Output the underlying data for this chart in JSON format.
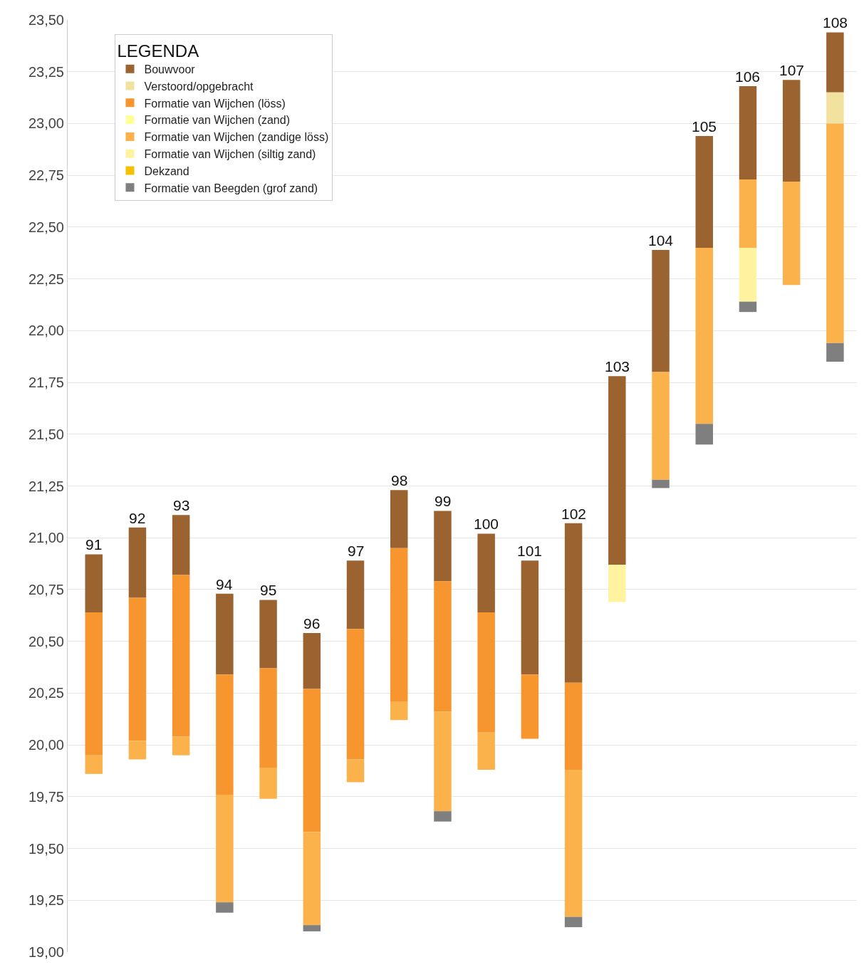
{
  "chart_data": {
    "type": "bar",
    "legend_title": "LEGENDA",
    "legend": "top left",
    "grid": "y",
    "tick_labels": "y",
    "categories": [
      "91",
      "92",
      "93",
      "94",
      "95",
      "96",
      "97",
      "98",
      "99",
      "100",
      "101",
      "102",
      "103",
      "104",
      "105",
      "106",
      "107",
      "108"
    ],
    "ylim": [
      19.0,
      23.5
    ],
    "yticks": [
      {
        "value": 19.0,
        "label": "19,00"
      },
      {
        "value": 19.25,
        "label": "19,25"
      },
      {
        "value": 19.5,
        "label": "19,50"
      },
      {
        "value": 19.75,
        "label": "19,75"
      },
      {
        "value": 20.0,
        "label": "20,00"
      },
      {
        "value": 20.25,
        "label": "20,25"
      },
      {
        "value": 20.5,
        "label": "20,50"
      },
      {
        "value": 20.75,
        "label": "20,75"
      },
      {
        "value": 21.0,
        "label": "21,00"
      },
      {
        "value": 21.25,
        "label": "21,25"
      },
      {
        "value": 21.5,
        "label": "21,50"
      },
      {
        "value": 21.75,
        "label": "21,75"
      },
      {
        "value": 22.0,
        "label": "22,00"
      },
      {
        "value": 22.25,
        "label": "22,25"
      },
      {
        "value": 22.5,
        "label": "22,50"
      },
      {
        "value": 22.75,
        "label": "22,75"
      },
      {
        "value": 23.0,
        "label": "23,00"
      },
      {
        "value": 23.25,
        "label": "23,25"
      },
      {
        "value": 23.5,
        "label": "23,50"
      }
    ],
    "series": [
      {
        "name": "Bouwvoor",
        "color": "#9a6330",
        "base": [
          20.64,
          20.71,
          20.82,
          20.34,
          20.37,
          20.27,
          20.56,
          20.95,
          20.79,
          20.64,
          20.34,
          20.3,
          20.87,
          21.8,
          22.4,
          22.73,
          22.72,
          23.15
        ],
        "values": [
          0.28,
          0.34,
          0.29,
          0.39,
          0.33,
          0.27,
          0.33,
          0.28,
          0.34,
          0.38,
          0.55,
          0.77,
          0.91,
          0.59,
          0.54,
          0.45,
          0.49,
          0.29
        ]
      },
      {
        "name": "Verstoord/opgebracht",
        "color": "#f2e2a0",
        "base": [
          null,
          null,
          null,
          null,
          null,
          null,
          null,
          null,
          null,
          null,
          null,
          null,
          null,
          null,
          null,
          null,
          null,
          23.0
        ],
        "values": [
          null,
          null,
          null,
          null,
          null,
          null,
          null,
          null,
          null,
          null,
          null,
          null,
          null,
          null,
          null,
          null,
          null,
          0.15
        ]
      },
      {
        "name": "Formatie van Wijchen (löss)",
        "color": "#f7962f",
        "base": [
          19.95,
          20.02,
          20.04,
          19.76,
          19.89,
          19.58,
          19.93,
          20.21,
          20.16,
          20.06,
          20.03,
          19.88,
          null,
          null,
          null,
          null,
          null,
          null
        ],
        "values": [
          0.69,
          0.69,
          0.78,
          0.58,
          0.48,
          0.69,
          0.63,
          0.74,
          0.63,
          0.58,
          0.31,
          0.42,
          null,
          null,
          null,
          null,
          null,
          null
        ]
      },
      {
        "name": "Formatie van Wijchen (zand)",
        "color": "#ffff99",
        "base": [
          null,
          null,
          null,
          null,
          null,
          null,
          null,
          null,
          null,
          null,
          null,
          null,
          null,
          null,
          null,
          null,
          null,
          null
        ],
        "values": [
          null,
          null,
          null,
          null,
          null,
          null,
          null,
          null,
          null,
          null,
          null,
          null,
          null,
          null,
          null,
          null,
          null,
          null
        ]
      },
      {
        "name": "Formatie van Wijchen (zandige löss)",
        "color": "#fbb24a",
        "base": [
          19.86,
          19.93,
          19.95,
          19.24,
          19.74,
          19.13,
          19.82,
          20.12,
          19.68,
          19.88,
          null,
          19.17,
          null,
          21.28,
          21.55,
          22.4,
          22.22,
          21.94
        ],
        "values": [
          0.09,
          0.09,
          0.09,
          0.52,
          0.15,
          0.45,
          0.11,
          0.09,
          0.48,
          0.18,
          null,
          0.71,
          null,
          0.52,
          0.85,
          0.33,
          0.5,
          1.06
        ]
      },
      {
        "name": "Formatie van Wijchen (siltig zand)",
        "color": "#fff3a0",
        "base": [
          null,
          null,
          null,
          null,
          null,
          null,
          null,
          null,
          null,
          null,
          null,
          null,
          20.69,
          null,
          null,
          22.14,
          null,
          null
        ],
        "values": [
          null,
          null,
          null,
          null,
          null,
          null,
          null,
          null,
          null,
          null,
          null,
          null,
          0.18,
          null,
          null,
          0.26,
          null,
          null
        ]
      },
      {
        "name": "Dekzand",
        "color": "#f5c000",
        "base": [
          null,
          null,
          null,
          null,
          null,
          null,
          null,
          null,
          null,
          null,
          null,
          null,
          null,
          null,
          null,
          null,
          null,
          null
        ],
        "values": [
          null,
          null,
          null,
          null,
          null,
          null,
          null,
          null,
          null,
          null,
          null,
          null,
          null,
          null,
          null,
          null,
          null,
          null
        ]
      },
      {
        "name": "Formatie van Beegden (grof zand)",
        "color": "#7f7f7f",
        "base": [
          null,
          null,
          null,
          19.19,
          null,
          19.1,
          null,
          null,
          19.63,
          null,
          null,
          19.12,
          null,
          21.24,
          21.45,
          22.09,
          null,
          21.85
        ],
        "values": [
          null,
          null,
          null,
          0.05,
          null,
          0.03,
          null,
          null,
          0.05,
          null,
          null,
          0.05,
          null,
          0.04,
          0.1,
          0.05,
          null,
          0.09
        ]
      }
    ]
  }
}
